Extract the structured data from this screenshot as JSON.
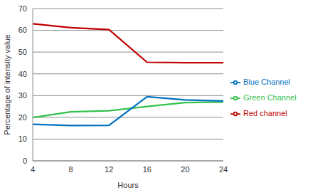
{
  "chart_data": {
    "type": "line",
    "x_label": "Hours",
    "y_label": "Percentage of intensity value",
    "categories": [
      "4",
      "8",
      "12",
      "16",
      "20",
      "24"
    ],
    "series": [
      {
        "name": "Red channel",
        "color": "#c00000",
        "values": [
          63,
          61.2,
          60.3,
          45.3,
          45.1,
          45.1
        ]
      },
      {
        "name": "Green Channel",
        "color": "#33c24d",
        "values": [
          19.9,
          22.5,
          23.0,
          25.0,
          26.8,
          27.0
        ]
      },
      {
        "name": "Blue Channel",
        "color": "#0070c0",
        "values": [
          16.8,
          16.2,
          16.3,
          29.5,
          28.0,
          27.5
        ]
      }
    ],
    "ylim": [
      0,
      70
    ],
    "yticks": [
      0,
      10,
      20,
      30,
      40,
      50,
      60,
      70
    ],
    "grid": true,
    "legend": "right"
  }
}
